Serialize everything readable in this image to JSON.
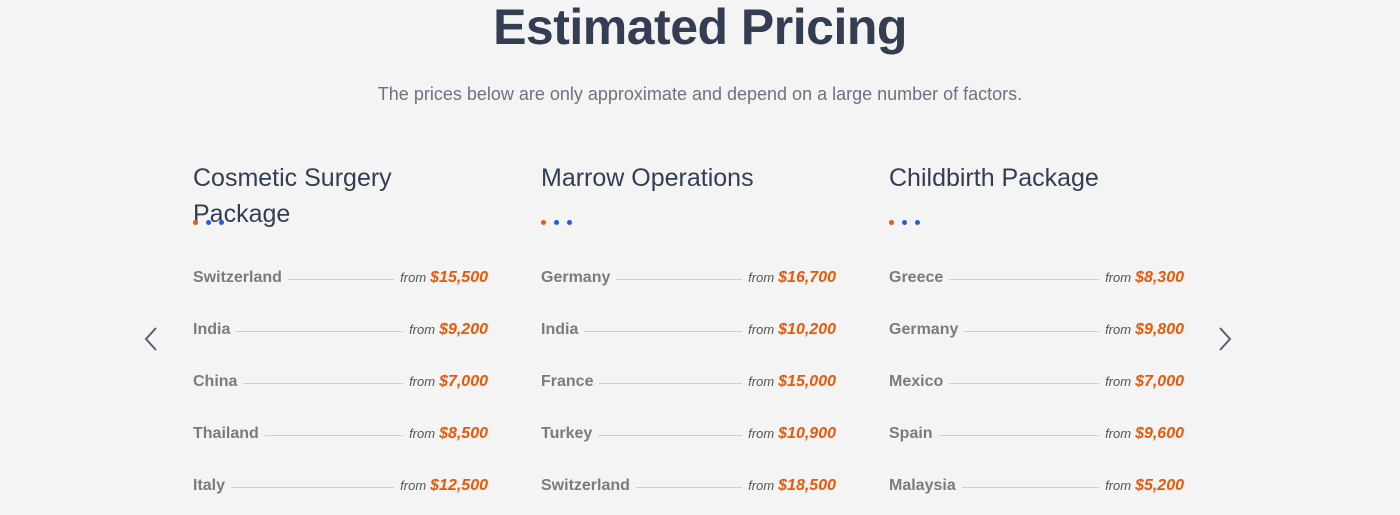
{
  "header": {
    "title": "Estimated Pricing",
    "subtitle": "The prices below are only approximate and depend on a large number of factors."
  },
  "price_prefix": "from",
  "packages": [
    {
      "title": "Cosmetic Surgery Package",
      "rows": [
        {
          "country": "Switzerland",
          "price": "$15,500"
        },
        {
          "country": "India",
          "price": "$9,200"
        },
        {
          "country": "China",
          "price": "$7,000"
        },
        {
          "country": "Thailand",
          "price": "$8,500"
        },
        {
          "country": "Italy",
          "price": "$12,500"
        }
      ]
    },
    {
      "title": "Marrow Operations",
      "rows": [
        {
          "country": "Germany",
          "price": "$16,700"
        },
        {
          "country": "India",
          "price": "$10,200"
        },
        {
          "country": "France",
          "price": "$15,000"
        },
        {
          "country": "Turkey",
          "price": "$10,900"
        },
        {
          "country": "Switzerland",
          "price": "$18,500"
        }
      ]
    },
    {
      "title": "Childbirth Package",
      "rows": [
        {
          "country": "Greece",
          "price": "$8,300"
        },
        {
          "country": "Germany",
          "price": "$9,800"
        },
        {
          "country": "Mexico",
          "price": "$7,000"
        },
        {
          "country": "Spain",
          "price": "$9,600"
        },
        {
          "country": "Malaysia",
          "price": "$5,200"
        }
      ]
    }
  ]
}
